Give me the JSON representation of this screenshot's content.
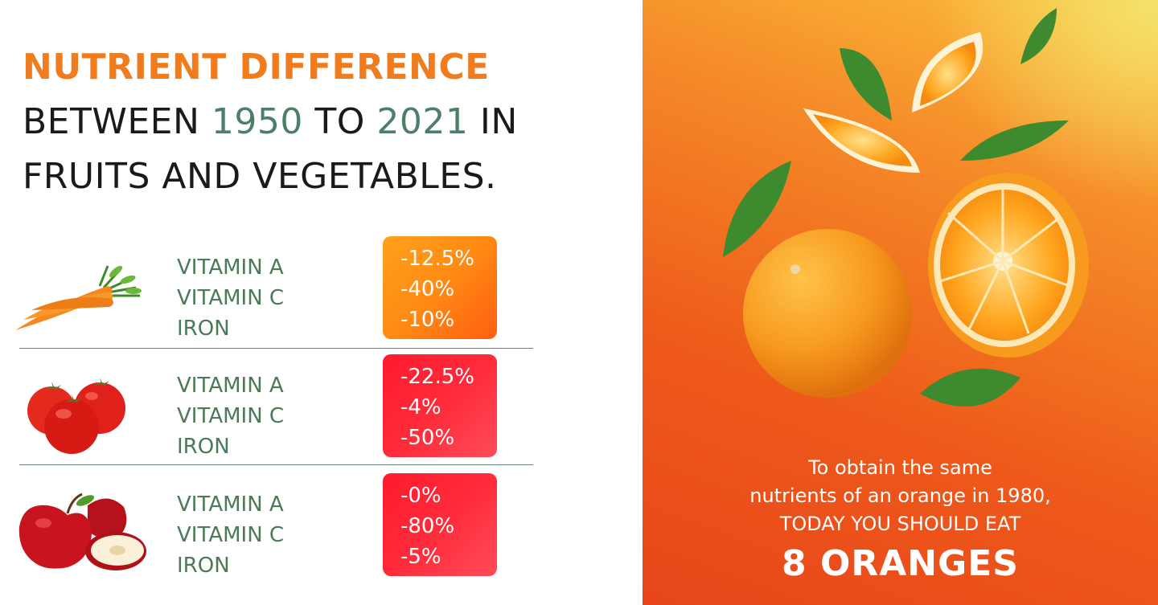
{
  "title": {
    "line1": "NUTRIENT DIFFERENCE",
    "between": "BETWEEN",
    "year_from": "1950",
    "to": "TO",
    "year_to": "2021",
    "in": "IN",
    "line3": "FRUITS AND VEGETABLES."
  },
  "rows": [
    {
      "item": "carrot",
      "labels": [
        "VITAMIN A",
        "VITAMIN C",
        "IRON"
      ],
      "values": [
        "-12.5%",
        "-40%",
        "-10%"
      ]
    },
    {
      "item": "tomato",
      "labels": [
        "VITAMIN A",
        "VITAMIN C",
        "IRON"
      ],
      "values": [
        "-22.5%",
        "-4%",
        "-50%"
      ]
    },
    {
      "item": "apple",
      "labels": [
        "VITAMIN A",
        "VITAMIN C",
        "IRON"
      ],
      "values": [
        "-0%",
        "-80%",
        "-5%"
      ]
    }
  ],
  "panel": {
    "line1": "To obtain the same",
    "line2": "nutrients of an orange in 1980,",
    "line3": "TODAY YOU SHOULD EAT",
    "cta": "8 ORANGES"
  },
  "colors": {
    "accent_orange": "#f07c1e",
    "year_green": "#4b8066",
    "label_green": "#4b7a56",
    "badge_orange": "#ff8a14",
    "badge_red": "#ff2b3a"
  }
}
